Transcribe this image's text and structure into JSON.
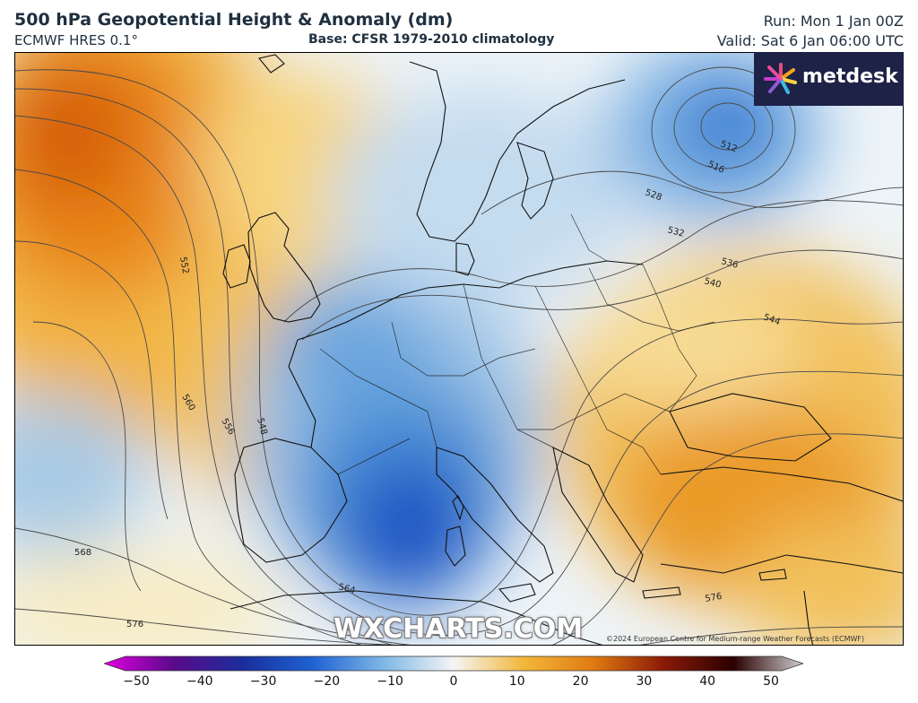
{
  "header": {
    "title": "500 hPa Geopotential Height & Anomaly (dm)",
    "model": "ECMWF HRES 0.1°",
    "base": "Base: CFSR 1979-2010 climatology",
    "run": "Run: Mon 1 Jan 00Z",
    "valid": "Valid: Sat 6 Jan 06:00 UTC"
  },
  "logo": {
    "text": "metdesk",
    "bg_color": "#1d2246"
  },
  "watermark": "WXCHARTS.COM",
  "credit": "©2024 European Centre for Medium-range Weather Forecasts (ECMWF)",
  "contour_labels": [
    "512",
    "516",
    "528",
    "532",
    "536",
    "540",
    "544",
    "548",
    "552",
    "556",
    "560",
    "564",
    "568",
    "576",
    "576"
  ],
  "colorbar": {
    "min": -50,
    "max": 50,
    "ticks": [
      "−50",
      "−40",
      "−30",
      "−20",
      "−10",
      "0",
      "10",
      "20",
      "30",
      "40",
      "50"
    ],
    "colors": [
      "#e000e0",
      "#5a0a8a",
      "#1a2e9e",
      "#1f63d3",
      "#7fb7e6",
      "#f5f5f5",
      "#f2b73a",
      "#e07a10",
      "#8a1a08",
      "#2a0000",
      "#cfcfcf"
    ]
  }
}
